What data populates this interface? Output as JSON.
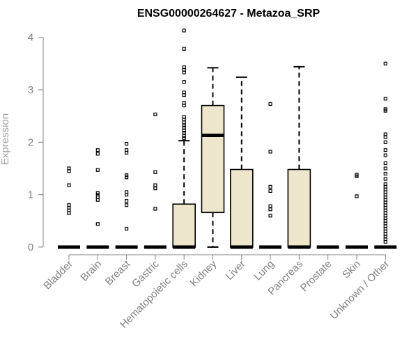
{
  "chart_data": {
    "type": "box",
    "title": "ENSG00000264627 - Metazoa_SRP",
    "xlabel": "",
    "ylabel": "Expression",
    "ylim": [
      0,
      4.1
    ],
    "yticks": [
      0,
      1,
      2,
      3,
      4
    ],
    "box_fill": "#ede6cc",
    "axis_color": "#808080",
    "categories": [
      "Bladder",
      "Brain",
      "Breast",
      "Gastric",
      "Hematopoietic cells",
      "Kidney",
      "Liver",
      "Lung",
      "Pancreas",
      "Prostate",
      "Skin",
      "Unknown / Other"
    ],
    "boxes": [
      {
        "label": "Bladder",
        "q1": 0,
        "median": 0,
        "q3": 0,
        "whisker_low": 0,
        "whisker_high": 0,
        "outliers": [
          0.65,
          0.7,
          0.75,
          0.8,
          1.18,
          1.45,
          1.5
        ]
      },
      {
        "label": "Brain",
        "q1": 0,
        "median": 0,
        "q3": 0,
        "whisker_low": 0,
        "whisker_high": 0,
        "outliers": [
          0.44,
          0.9,
          0.95,
          1.0,
          1.03,
          1.47,
          1.78,
          1.85
        ]
      },
      {
        "label": "Breast",
        "q1": 0,
        "median": 0,
        "q3": 0,
        "whisker_low": 0,
        "whisker_high": 0,
        "outliers": [
          0.35,
          0.8,
          0.88,
          1.0,
          1.05,
          1.33,
          1.37,
          1.8,
          1.85,
          1.97
        ]
      },
      {
        "label": "Gastric",
        "q1": 0,
        "median": 0,
        "q3": 0,
        "whisker_low": 0,
        "whisker_high": 0,
        "outliers": [
          0.73,
          1.12,
          1.18,
          1.43,
          2.53
        ]
      },
      {
        "label": "Hematopoietic cells",
        "q1": 0,
        "median": 0,
        "q3": 0.82,
        "whisker_low": 0,
        "whisker_high": 2.03,
        "outliers": [
          2.08,
          2.12,
          2.18,
          2.22,
          2.28,
          2.32,
          2.38,
          2.43,
          2.48,
          2.7,
          2.75,
          2.9,
          2.95,
          3.15,
          3.33,
          3.38,
          3.43,
          3.78,
          4.13
        ]
      },
      {
        "label": "Kidney",
        "q1": 0.66,
        "median": 2.13,
        "q3": 2.7,
        "whisker_low": 0,
        "whisker_high": 3.42,
        "outliers": []
      },
      {
        "label": "Liver",
        "q1": 0,
        "median": 0,
        "q3": 1.48,
        "whisker_low": 0,
        "whisker_high": 3.24,
        "outliers": []
      },
      {
        "label": "Lung",
        "q1": 0,
        "median": 0,
        "q3": 0,
        "whisker_low": 0,
        "whisker_high": 0,
        "outliers": [
          0.6,
          0.72,
          0.78,
          1.07,
          1.15,
          1.82,
          2.73
        ]
      },
      {
        "label": "Pancreas",
        "q1": 0,
        "median": 0,
        "q3": 1.48,
        "whisker_low": 0,
        "whisker_high": 3.44,
        "outliers": []
      },
      {
        "label": "Prostate",
        "q1": 0,
        "median": 0,
        "q3": 0,
        "whisker_low": 0,
        "whisker_high": 0,
        "outliers": []
      },
      {
        "label": "Skin",
        "q1": 0,
        "median": 0,
        "q3": 0,
        "whisker_low": 0,
        "whisker_high": 0,
        "outliers": [
          0.97,
          1.35,
          1.38
        ]
      },
      {
        "label": "Unknown / Other",
        "q1": 0,
        "median": 0,
        "q3": 0,
        "whisker_low": 0,
        "whisker_high": 0,
        "outliers": [
          0.1,
          0.15,
          0.2,
          0.25,
          0.3,
          0.35,
          0.4,
          0.45,
          0.5,
          0.55,
          0.6,
          0.65,
          0.7,
          0.75,
          0.8,
          0.85,
          0.9,
          0.95,
          1.0,
          1.05,
          1.1,
          1.15,
          1.2,
          1.3,
          1.4,
          1.5,
          1.6,
          1.75,
          1.85,
          2.0,
          2.1,
          2.15,
          2.6,
          2.63,
          2.83,
          3.5
        ]
      }
    ]
  }
}
